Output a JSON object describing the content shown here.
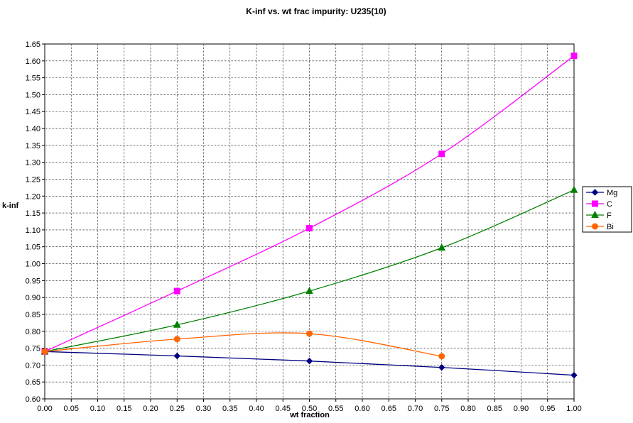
{
  "chart_data": {
    "type": "line",
    "title": "K-inf vs. wt frac impurity:  U235(10)",
    "xlabel": "wt fraction",
    "ylabel": "k-inf",
    "xlim": [
      0,
      1
    ],
    "ylim": [
      0.6,
      1.65
    ],
    "x_ticks": [
      "0.00",
      "0.05",
      "0.10",
      "0.15",
      "0.20",
      "0.25",
      "0.30",
      "0.35",
      "0.40",
      "0.45",
      "0.50",
      "0.55",
      "0.60",
      "0.65",
      "0.70",
      "0.75",
      "0.80",
      "0.85",
      "0.90",
      "0.95",
      "1.00"
    ],
    "y_ticks": [
      "0.60",
      "0.65",
      "0.70",
      "0.75",
      "0.80",
      "0.85",
      "0.90",
      "0.95",
      "1.00",
      "1.05",
      "1.10",
      "1.15",
      "1.20",
      "1.25",
      "1.30",
      "1.35",
      "1.40",
      "1.45",
      "1.50",
      "1.55",
      "1.60",
      "1.65"
    ],
    "grid": true,
    "legend_position": "right",
    "series": [
      {
        "name": "Mg",
        "color": "#000080",
        "marker": "diamond",
        "x": [
          0,
          0.25,
          0.5,
          0.75,
          1.0
        ],
        "y": [
          0.74,
          0.727,
          0.712,
          0.693,
          0.67
        ]
      },
      {
        "name": "C",
        "color": "#ff00ff",
        "marker": "square",
        "x": [
          0,
          0.25,
          0.5,
          0.75,
          1.0
        ],
        "y": [
          0.74,
          0.919,
          1.105,
          1.325,
          1.615
        ]
      },
      {
        "name": "F",
        "color": "#008000",
        "marker": "triangle",
        "x": [
          0,
          0.25,
          0.5,
          0.75,
          1.0
        ],
        "y": [
          0.74,
          0.819,
          0.919,
          1.047,
          1.218
        ]
      },
      {
        "name": "Bi",
        "color": "#ff6600",
        "marker": "circle",
        "x": [
          0,
          0.25,
          0.5,
          0.75
        ],
        "y": [
          0.74,
          0.777,
          0.793,
          0.726
        ]
      }
    ]
  }
}
